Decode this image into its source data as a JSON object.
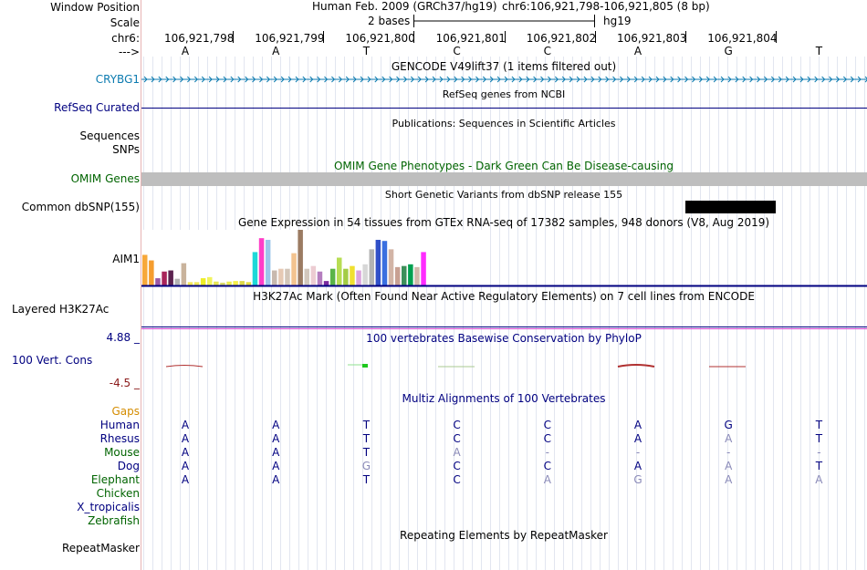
{
  "header": {
    "window_position_label": "Window Position",
    "scale_label": "Scale",
    "chrom_label": "chr6:",
    "strand_label": "--->",
    "assembly_title": "Human Feb. 2009 (GRCh37/hg19)",
    "coord_title": "chr6:106,921,798-106,921,805 (8 bp)",
    "scale_text": "2 bases",
    "assembly_short": "hg19",
    "positions": [
      "106,921,798",
      "106,921,799",
      "106,921,800",
      "106,921,801",
      "106,921,802",
      "106,921,803",
      "106,921,804"
    ],
    "bases": [
      "A",
      "A",
      "T",
      "C",
      "C",
      "A",
      "G",
      "T"
    ]
  },
  "tracks": {
    "gencode": {
      "title": "GENCODE V49lift37 (1 items filtered out)",
      "gene_label": "CRYBG1"
    },
    "refseq": {
      "title": "RefSeq genes from NCBI",
      "label": "RefSeq Curated"
    },
    "publications": {
      "title": "Publications: Sequences in Scientific Articles",
      "label1": "Sequences",
      "label2": "SNPs"
    },
    "omim": {
      "title": "OMIM Gene Phenotypes - Dark Green Can Be Disease-causing",
      "label": "OMIM Genes"
    },
    "dbsnp": {
      "title": "Short Genetic Variants from dbSNP release 155",
      "label": "Common dbSNP(155)"
    },
    "gtex": {
      "title": "Gene Expression in 54 tissues from GTEx RNA-seq of 17382 samples, 948 donors (V8, Aug 2019)",
      "label": "AIM1"
    },
    "h3k27ac": {
      "title": "H3K27Ac Mark (Often Found Near Active Regulatory Elements) on 7 cell lines from ENCODE",
      "label": "Layered H3K27Ac"
    },
    "phylop": {
      "title": "100 vertebrates Basewise Conservation by PhyloP",
      "label": "100 Vert. Cons",
      "max_label": "4.88 _",
      "min_label": "-4.5 _"
    },
    "multiz": {
      "title": "Multiz Alignments of 100 Vertebrates",
      "gaps_label": "Gaps"
    },
    "repeatmasker": {
      "title": "Repeating Elements by RepeatMasker",
      "label": "RepeatMasker"
    }
  },
  "species": [
    {
      "name": "Human",
      "color": "#000080",
      "bases": [
        "A",
        "A",
        "T",
        "C",
        "C",
        "A",
        "G",
        "T"
      ]
    },
    {
      "name": "Rhesus",
      "color": "#000080",
      "bases": [
        "A",
        "A",
        "T",
        "C",
        "C",
        "A",
        "A",
        "T"
      ]
    },
    {
      "name": "Mouse",
      "color": "#006400",
      "bases": [
        "A",
        "A",
        "T",
        "A",
        "-",
        "-",
        "-",
        "-"
      ]
    },
    {
      "name": "Dog",
      "color": "#000080",
      "bases": [
        "A",
        "A",
        "G",
        "C",
        "C",
        "A",
        "A",
        "T"
      ]
    },
    {
      "name": "Elephant",
      "color": "#006400",
      "bases": [
        "A",
        "A",
        "T",
        "C",
        "A",
        "G",
        "A",
        "A"
      ]
    },
    {
      "name": "Chicken",
      "color": "#006400",
      "bases": []
    },
    {
      "name": "X_tropicalis",
      "color": "#000080",
      "bases": []
    },
    {
      "name": "Zebrafish",
      "color": "#006400",
      "bases": []
    }
  ],
  "colors": {
    "gencode": "#0c7bb0",
    "navy": "#000080",
    "omim_green": "#006400",
    "gaps_orange": "#d48c00",
    "phylop_pos": "#b03030",
    "phylop_neg": "#1ec81e"
  },
  "gtex_colors": [
    "#f7a83a",
    "#f59d2e",
    "#9b58a6",
    "#a8245a",
    "#5c2350",
    "#b3b3b3",
    "#c9b39c",
    "#f2e65a",
    "#f0e85a",
    "#eeee28",
    "#f1f35e",
    "#e6e655",
    "#d8d86a",
    "#ebeb50",
    "#f5ee4a",
    "#ddd84a",
    "#e4dd45",
    "#1ed8d8",
    "#ff3ec8",
    "#9cc6ea",
    "#c8b9ae",
    "#e6c9b4",
    "#d3c6b9",
    "#f3c38f",
    "#9b7b62",
    "#d2c8bd",
    "#ecccd2",
    "#b57ebf",
    "#7a2a9e",
    "#5ab448",
    "#b7dd53",
    "#a3cc44",
    "#f0e030",
    "#dba4dc",
    "#d7d7d7",
    "#b3b3b3",
    "#3050c8",
    "#3a6fe0",
    "#d2b4a6",
    "#c8a092",
    "#3d8f5a",
    "#00a050",
    "#d0b8aa",
    "#ff2bff"
  ],
  "gtex_values": [
    0.55,
    0.45,
    0.13,
    0.25,
    0.27,
    0.12,
    0.4,
    0.06,
    0.06,
    0.13,
    0.15,
    0.07,
    0.05,
    0.07,
    0.08,
    0.08,
    0.06,
    0.6,
    0.85,
    0.82,
    0.27,
    0.3,
    0.3,
    0.58,
    1.0,
    0.3,
    0.35,
    0.25,
    0.08,
    0.3,
    0.5,
    0.3,
    0.35,
    0.27,
    0.38,
    0.65,
    0.82,
    0.8,
    0.65,
    0.33,
    0.35,
    0.38,
    0.33,
    0.6
  ]
}
